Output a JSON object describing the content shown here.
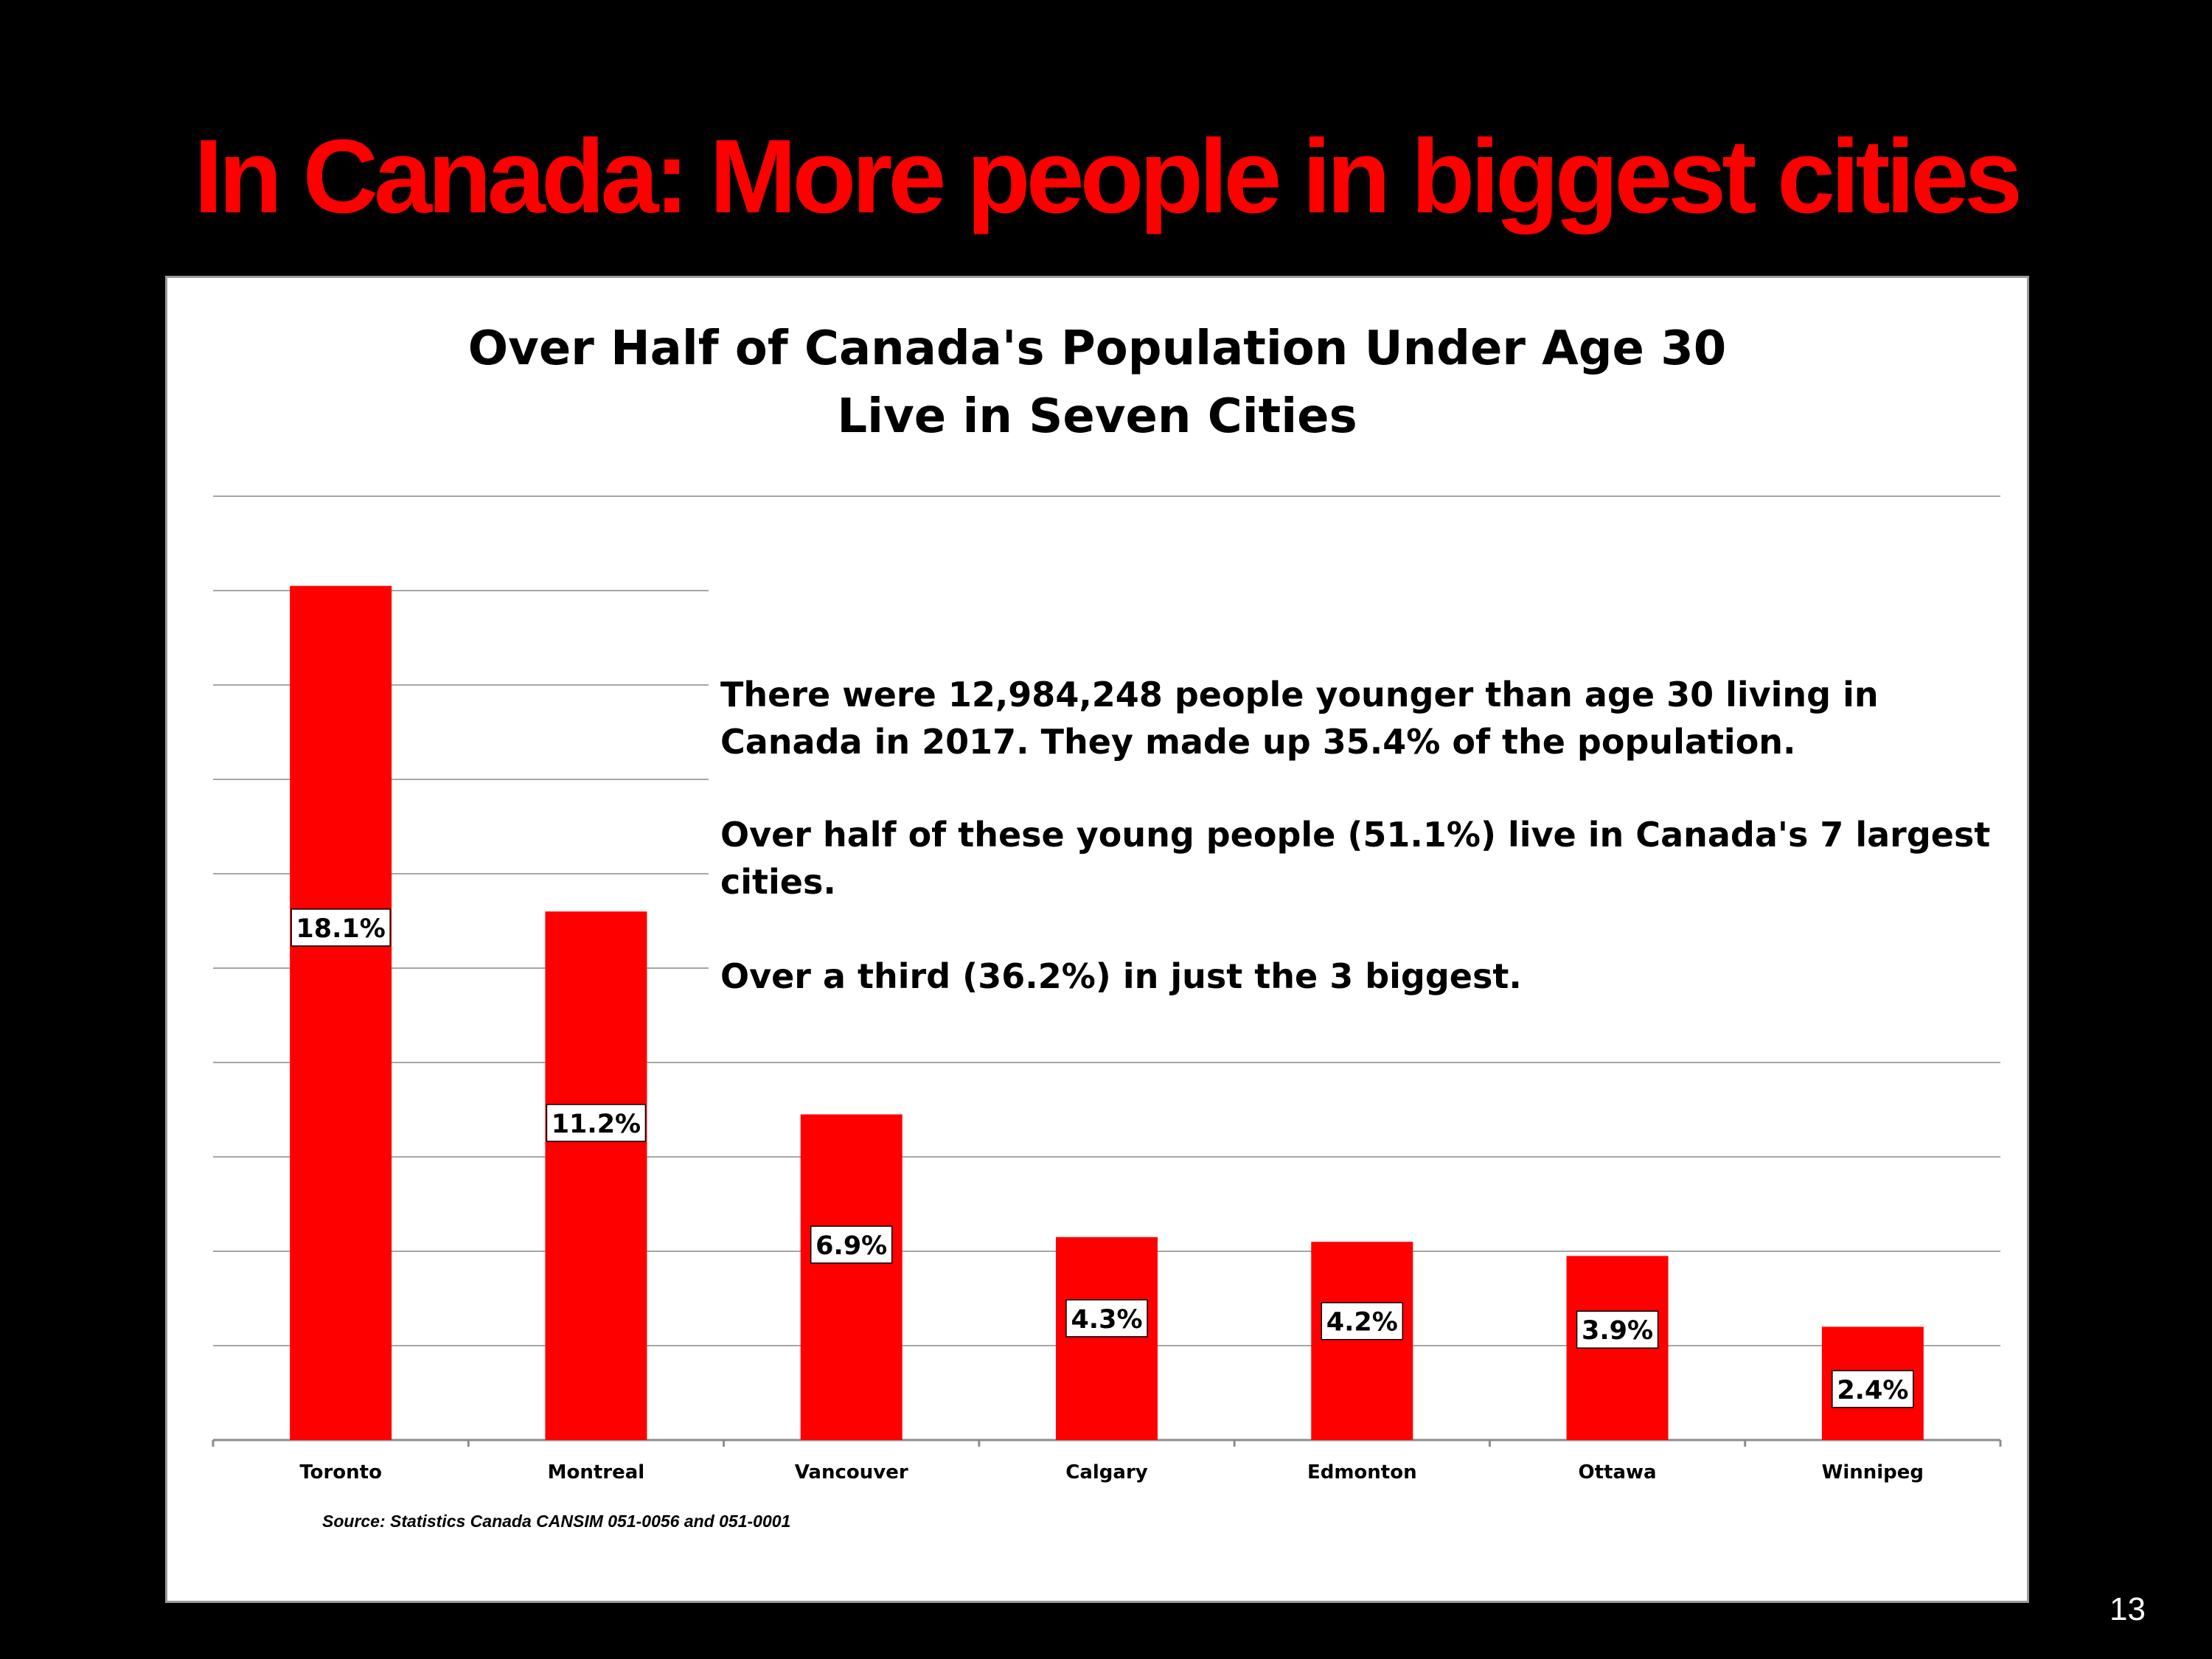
{
  "slide": {
    "title": "In Canada: More people in biggest cities",
    "page_number": "13"
  },
  "chart_data": {
    "type": "bar",
    "title": "Over Half of Canada's Population Under Age 30 Live in Seven Cities",
    "title_lines": [
      "Over Half of Canada's Population Under Age 30",
      "Live in Seven Cities"
    ],
    "categories": [
      "Toronto",
      "Montreal",
      "Vancouver",
      "Calgary",
      "Edmonton",
      "Ottawa",
      "Winnipeg"
    ],
    "values": [
      18.1,
      11.2,
      6.9,
      4.3,
      4.2,
      3.9,
      2.4
    ],
    "data_labels": [
      "18.1%",
      "11.2%",
      "6.9%",
      "4.3%",
      "4.2%",
      "3.9%",
      "2.4%"
    ],
    "ylim": [
      0,
      20
    ],
    "gridlines": true,
    "xlabel": "",
    "ylabel": "",
    "bar_color": "#ff0000",
    "annotations": [
      "There were 12,984,248 people younger than age 30 living in Canada in 2017. They made up 35.4% of the population.",
      "Over half of these young people (51.1%) live in Canada's 7 largest cities.",
      "Over a third (36.2%) in just the 3 biggest."
    ],
    "source": "Source:  Statistics Canada CANSIM 051-0056 and 051-0001"
  },
  "colors": {
    "background": "#000000",
    "title": "#ff0000",
    "bar": "#ff0000",
    "gridline": "#a6a6a6"
  }
}
